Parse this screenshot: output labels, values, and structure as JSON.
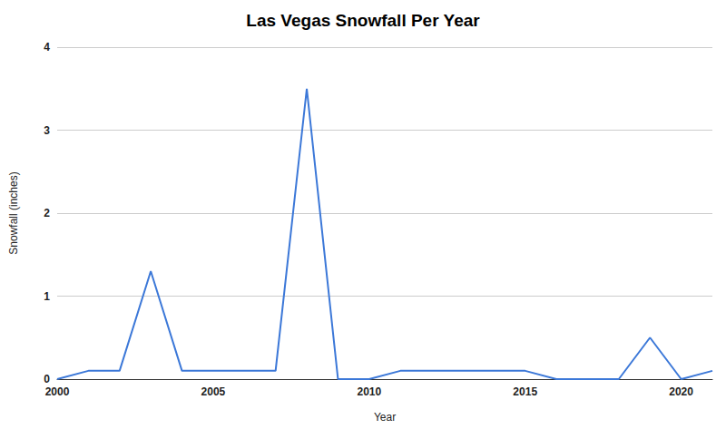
{
  "chart_data": {
    "type": "line",
    "title": "Las Vegas Snowfall Per Year",
    "x_label": "Year",
    "y_label": "Snowfall (inches)",
    "x": [
      2000,
      2001,
      2002,
      2003,
      2004,
      2005,
      2006,
      2007,
      2008,
      2009,
      2010,
      2011,
      2012,
      2013,
      2014,
      2015,
      2016,
      2017,
      2018,
      2019,
      2020,
      2021
    ],
    "values": [
      0,
      0.1,
      0.1,
      1.3,
      0.1,
      0.1,
      0.1,
      0.1,
      3.5,
      0,
      0,
      0.1,
      0.1,
      0.1,
      0.1,
      0.1,
      0,
      0,
      0,
      0.5,
      0,
      0.1
    ],
    "color": "#3c78d8",
    "xlim": [
      2000,
      2021
    ],
    "xticks": [
      2000,
      2005,
      2010,
      2015,
      2020
    ],
    "ylim": [
      0,
      4
    ],
    "yticks": [
      0,
      1,
      2,
      3,
      4
    ],
    "grid": true
  }
}
